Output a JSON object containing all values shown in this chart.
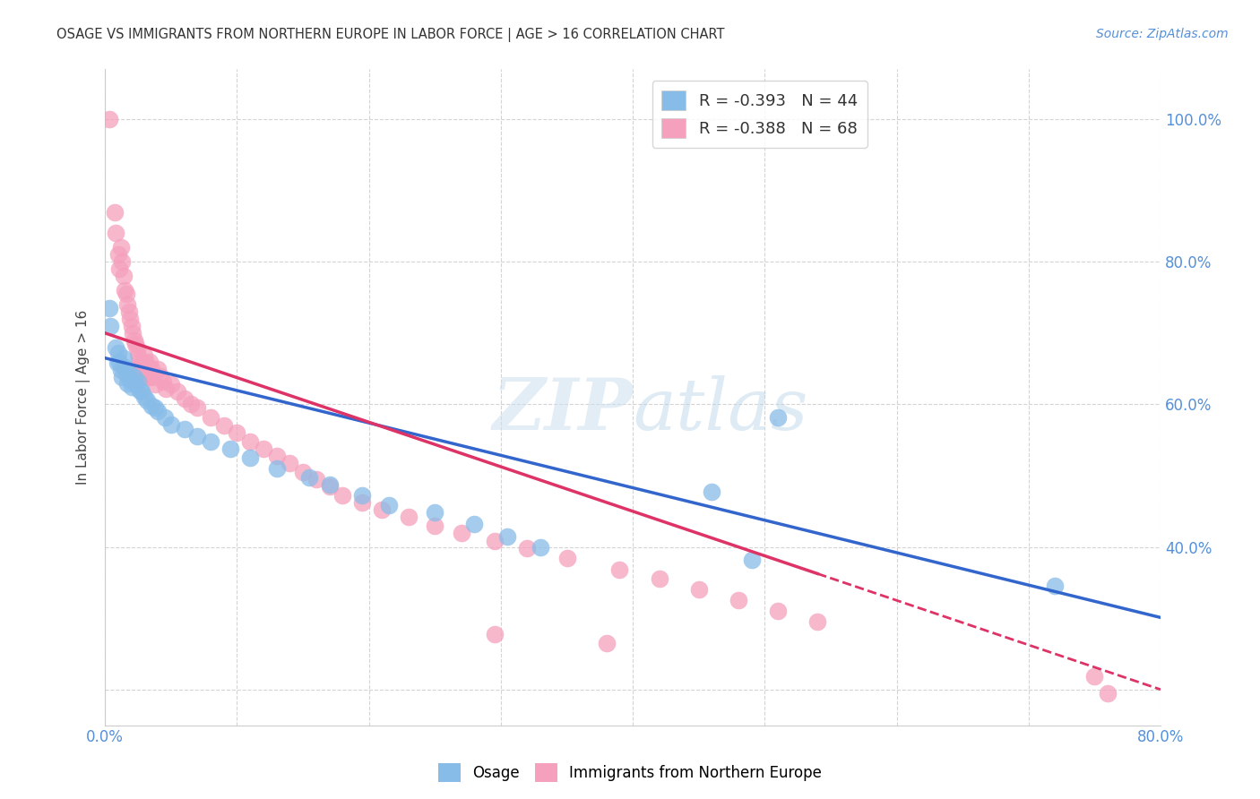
{
  "title": "OSAGE VS IMMIGRANTS FROM NORTHERN EUROPE IN LABOR FORCE | AGE > 16 CORRELATION CHART",
  "source": "Source: ZipAtlas.com",
  "ylabel": "In Labor Force | Age > 16",
  "xlim": [
    0.0,
    0.8
  ],
  "ylim": [
    0.15,
    1.07
  ],
  "xtick_vals": [
    0.0,
    0.1,
    0.2,
    0.3,
    0.4,
    0.5,
    0.6,
    0.7,
    0.8
  ],
  "xticklabels": [
    "0.0%",
    "",
    "",
    "",
    "",
    "",
    "",
    "",
    "80.0%"
  ],
  "ytick_vals": [
    0.2,
    0.4,
    0.6,
    0.8,
    1.0
  ],
  "yticklabels_right": [
    "",
    "40.0%",
    "60.0%",
    "80.0%",
    "100.0%"
  ],
  "watermark": "ZIPatlas",
  "osage_color": "#88bce8",
  "immigrant_color": "#f5a0bc",
  "line1_color": "#3366cc",
  "line2_color": "#dd3366",
  "osage_scatter": [
    [
      0.003,
      0.735
    ],
    [
      0.004,
      0.71
    ],
    [
      0.008,
      0.68
    ],
    [
      0.009,
      0.658
    ],
    [
      0.01,
      0.672
    ],
    [
      0.011,
      0.66
    ],
    [
      0.012,
      0.648
    ],
    [
      0.013,
      0.638
    ],
    [
      0.014,
      0.665
    ],
    [
      0.015,
      0.652
    ],
    [
      0.016,
      0.642
    ],
    [
      0.017,
      0.63
    ],
    [
      0.018,
      0.645
    ],
    [
      0.019,
      0.635
    ],
    [
      0.02,
      0.625
    ],
    [
      0.022,
      0.638
    ],
    [
      0.023,
      0.628
    ],
    [
      0.025,
      0.632
    ],
    [
      0.026,
      0.62
    ],
    [
      0.028,
      0.618
    ],
    [
      0.03,
      0.61
    ],
    [
      0.032,
      0.605
    ],
    [
      0.035,
      0.598
    ],
    [
      0.038,
      0.595
    ],
    [
      0.04,
      0.59
    ],
    [
      0.045,
      0.582
    ],
    [
      0.05,
      0.572
    ],
    [
      0.06,
      0.565
    ],
    [
      0.07,
      0.555
    ],
    [
      0.08,
      0.548
    ],
    [
      0.095,
      0.538
    ],
    [
      0.11,
      0.525
    ],
    [
      0.13,
      0.51
    ],
    [
      0.155,
      0.498
    ],
    [
      0.17,
      0.488
    ],
    [
      0.195,
      0.472
    ],
    [
      0.215,
      0.458
    ],
    [
      0.25,
      0.448
    ],
    [
      0.28,
      0.432
    ],
    [
      0.305,
      0.415
    ],
    [
      0.33,
      0.4
    ],
    [
      0.46,
      0.478
    ],
    [
      0.51,
      0.582
    ],
    [
      0.49,
      0.382
    ],
    [
      0.72,
      0.345
    ]
  ],
  "immigrant_scatter": [
    [
      0.003,
      1.0
    ],
    [
      0.007,
      0.87
    ],
    [
      0.008,
      0.84
    ],
    [
      0.01,
      0.81
    ],
    [
      0.011,
      0.79
    ],
    [
      0.012,
      0.82
    ],
    [
      0.013,
      0.8
    ],
    [
      0.014,
      0.78
    ],
    [
      0.015,
      0.76
    ],
    [
      0.016,
      0.755
    ],
    [
      0.017,
      0.74
    ],
    [
      0.018,
      0.73
    ],
    [
      0.019,
      0.72
    ],
    [
      0.02,
      0.71
    ],
    [
      0.021,
      0.7
    ],
    [
      0.022,
      0.69
    ],
    [
      0.023,
      0.685
    ],
    [
      0.024,
      0.678
    ],
    [
      0.025,
      0.668
    ],
    [
      0.026,
      0.66
    ],
    [
      0.027,
      0.655
    ],
    [
      0.028,
      0.648
    ],
    [
      0.029,
      0.64
    ],
    [
      0.03,
      0.668
    ],
    [
      0.031,
      0.658
    ],
    [
      0.032,
      0.648
    ],
    [
      0.033,
      0.638
    ],
    [
      0.034,
      0.66
    ],
    [
      0.035,
      0.65
    ],
    [
      0.036,
      0.638
    ],
    [
      0.038,
      0.628
    ],
    [
      0.04,
      0.65
    ],
    [
      0.042,
      0.64
    ],
    [
      0.044,
      0.632
    ],
    [
      0.046,
      0.622
    ],
    [
      0.05,
      0.628
    ],
    [
      0.055,
      0.618
    ],
    [
      0.06,
      0.608
    ],
    [
      0.065,
      0.6
    ],
    [
      0.07,
      0.595
    ],
    [
      0.08,
      0.582
    ],
    [
      0.09,
      0.57
    ],
    [
      0.1,
      0.56
    ],
    [
      0.11,
      0.548
    ],
    [
      0.12,
      0.538
    ],
    [
      0.13,
      0.528
    ],
    [
      0.14,
      0.518
    ],
    [
      0.15,
      0.505
    ],
    [
      0.16,
      0.495
    ],
    [
      0.17,
      0.485
    ],
    [
      0.18,
      0.472
    ],
    [
      0.195,
      0.462
    ],
    [
      0.21,
      0.452
    ],
    [
      0.23,
      0.442
    ],
    [
      0.25,
      0.43
    ],
    [
      0.27,
      0.42
    ],
    [
      0.295,
      0.408
    ],
    [
      0.32,
      0.398
    ],
    [
      0.35,
      0.385
    ],
    [
      0.39,
      0.368
    ],
    [
      0.42,
      0.355
    ],
    [
      0.45,
      0.34
    ],
    [
      0.48,
      0.325
    ],
    [
      0.51,
      0.31
    ],
    [
      0.54,
      0.295
    ],
    [
      0.295,
      0.278
    ],
    [
      0.38,
      0.265
    ],
    [
      0.75,
      0.218
    ],
    [
      0.76,
      0.195
    ]
  ],
  "grid_color": "#d0d0d0",
  "background_color": "#ffffff"
}
